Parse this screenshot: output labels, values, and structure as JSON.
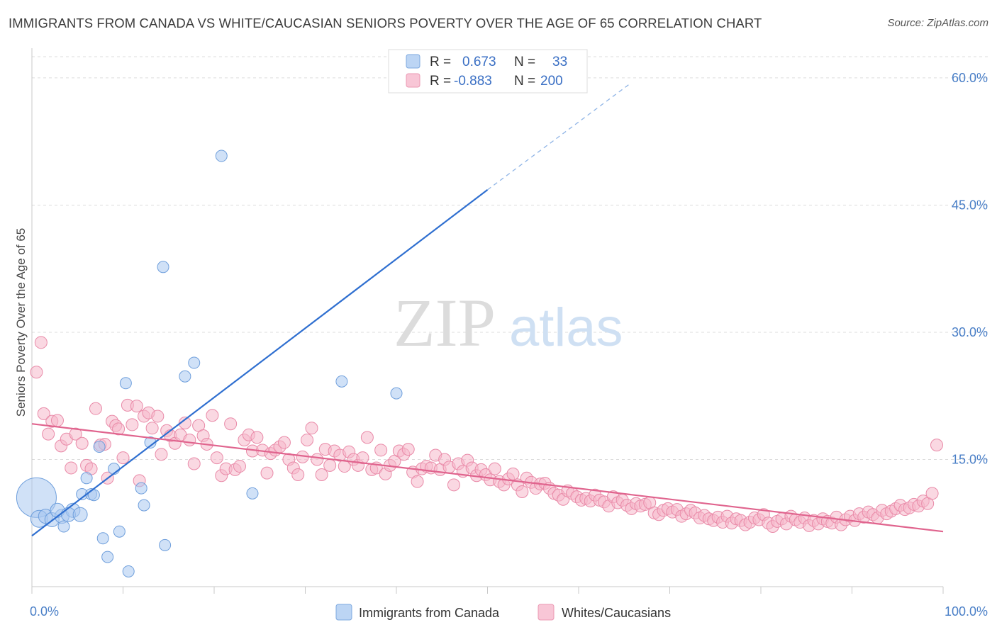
{
  "title": "IMMIGRANTS FROM CANADA VS WHITE/CAUCASIAN SENIORS POVERTY OVER THE AGE OF 65 CORRELATION CHART",
  "source": "Source: ZipAtlas.com",
  "watermark": {
    "zip": "ZIP",
    "atlas": "atlas"
  },
  "colors": {
    "blue": "#a9c8f0",
    "blue_stroke": "#6f9fdc",
    "blue_line": "#2f6fd0",
    "pink": "#f5b8cb",
    "pink_stroke": "#e98aa8",
    "pink_line": "#e0648e",
    "axis_text": "#4a7fc7"
  },
  "chart_data": {
    "type": "scatter",
    "xlabel": "",
    "ylabel": "Seniors Poverty Over the Age of 65",
    "xlim": [
      0,
      100
    ],
    "ylim": [
      0,
      62.5
    ],
    "x_ticks": [
      "0.0%",
      "100.0%"
    ],
    "y_ticks": [
      {
        "value": 15,
        "label": "15.0%"
      },
      {
        "value": 30,
        "label": "30.0%"
      },
      {
        "value": 45,
        "label": "45.0%"
      },
      {
        "value": 60,
        "label": "60.0%"
      }
    ],
    "grid": "horizontal-dashed",
    "legend": {
      "placement": "top-center",
      "rows": [
        {
          "r_label": "R =",
          "r_value": "0.673",
          "n_label": "N =",
          "n_value": "33"
        },
        {
          "r_label": "R =",
          "r_value": "-0.883",
          "n_label": "N =",
          "n_value": "200"
        }
      ]
    },
    "series": [
      {
        "name": "Immigrants from Canada",
        "color": "blue",
        "trend": {
          "x0": 0,
          "y0": 6.0,
          "x1": 50.0,
          "y1": 46.8,
          "dash_to_x": 65.5,
          "dash_to_y": 59.2
        },
        "points": [
          [
            0.5,
            10.5,
            28
          ],
          [
            0.8,
            8.0,
            12
          ],
          [
            1.5,
            8.3,
            10
          ],
          [
            2.2,
            7.9,
            10
          ],
          [
            3.3,
            8.3,
            10
          ],
          [
            2.8,
            9.0,
            10
          ],
          [
            3.5,
            7.1,
            8
          ],
          [
            4.5,
            9.0,
            10
          ],
          [
            4.0,
            8.5,
            10
          ],
          [
            5.3,
            8.5,
            10
          ],
          [
            5.5,
            10.9,
            8
          ],
          [
            6.0,
            12.8,
            8
          ],
          [
            6.5,
            10.9,
            8
          ],
          [
            6.8,
            10.8,
            8
          ],
          [
            7.4,
            16.5,
            8
          ],
          [
            7.8,
            5.7,
            8
          ],
          [
            8.3,
            3.5,
            8
          ],
          [
            9.0,
            13.9,
            8
          ],
          [
            9.6,
            6.5,
            8
          ],
          [
            10.3,
            24.0,
            8
          ],
          [
            10.6,
            1.8,
            8
          ],
          [
            12.0,
            11.6,
            8
          ],
          [
            12.3,
            9.6,
            8
          ],
          [
            13.0,
            17.0,
            8
          ],
          [
            14.4,
            37.7,
            8
          ],
          [
            14.6,
            4.9,
            8
          ],
          [
            16.8,
            24.8,
            8
          ],
          [
            17.8,
            26.4,
            8
          ],
          [
            20.8,
            50.8,
            8
          ],
          [
            24.2,
            11.0,
            8
          ],
          [
            34.0,
            24.2,
            8
          ],
          [
            40.0,
            22.8,
            8
          ],
          [
            41.0,
            60.2,
            8
          ]
        ]
      },
      {
        "name": "Whites/Caucasians",
        "color": "pink",
        "trend": {
          "x0": 0,
          "y0": 19.2,
          "x1": 100,
          "y1": 6.5
        },
        "points": [
          [
            0.5,
            25.3
          ],
          [
            1.0,
            28.8
          ],
          [
            1.3,
            20.4
          ],
          [
            1.8,
            18.0
          ],
          [
            2.2,
            19.5
          ],
          [
            2.8,
            19.6
          ],
          [
            3.2,
            16.6
          ],
          [
            3.8,
            17.4
          ],
          [
            4.3,
            14.0
          ],
          [
            4.8,
            18.0
          ],
          [
            5.5,
            16.9
          ],
          [
            6.0,
            14.3
          ],
          [
            6.5,
            13.9
          ],
          [
            7.0,
            21.0
          ],
          [
            7.5,
            16.7
          ],
          [
            8.0,
            16.8
          ],
          [
            8.3,
            12.8
          ],
          [
            8.8,
            19.5
          ],
          [
            9.2,
            19.0
          ],
          [
            9.5,
            18.6
          ],
          [
            10.0,
            15.2
          ],
          [
            10.5,
            21.4
          ],
          [
            11.0,
            19.1
          ],
          [
            11.5,
            21.3
          ],
          [
            11.8,
            12.5
          ],
          [
            12.3,
            20.1
          ],
          [
            12.8,
            20.5
          ],
          [
            13.2,
            18.7
          ],
          [
            13.8,
            20.1
          ],
          [
            14.2,
            15.6
          ],
          [
            14.8,
            18.4
          ],
          [
            15.2,
            17.8
          ],
          [
            15.7,
            16.9
          ],
          [
            16.3,
            17.9
          ],
          [
            16.8,
            19.3
          ],
          [
            17.3,
            17.3
          ],
          [
            17.8,
            14.5
          ],
          [
            18.3,
            19.0
          ],
          [
            18.8,
            17.8
          ],
          [
            19.2,
            16.8
          ],
          [
            19.8,
            20.2
          ],
          [
            20.3,
            15.2
          ],
          [
            20.8,
            13.1
          ],
          [
            21.3,
            13.9
          ],
          [
            21.8,
            19.2
          ],
          [
            22.3,
            13.8
          ],
          [
            22.8,
            14.2
          ],
          [
            23.3,
            17.3
          ],
          [
            23.8,
            17.9
          ],
          [
            24.2,
            16.0
          ],
          [
            24.7,
            17.6
          ],
          [
            25.3,
            16.1
          ],
          [
            25.8,
            13.4
          ],
          [
            26.2,
            15.7
          ],
          [
            26.7,
            16.1
          ],
          [
            27.2,
            16.5
          ],
          [
            27.7,
            17.0
          ],
          [
            28.2,
            15.0
          ],
          [
            28.7,
            14.0
          ],
          [
            29.2,
            13.2
          ],
          [
            29.7,
            15.3
          ],
          [
            30.2,
            17.3
          ],
          [
            30.7,
            18.7
          ],
          [
            31.3,
            15.0
          ],
          [
            31.8,
            13.2
          ],
          [
            32.2,
            16.2
          ],
          [
            32.7,
            14.3
          ],
          [
            33.2,
            16.0
          ],
          [
            33.8,
            15.5
          ],
          [
            34.3,
            14.2
          ],
          [
            34.8,
            15.9
          ],
          [
            35.3,
            15.0
          ],
          [
            35.8,
            14.3
          ],
          [
            36.3,
            15.2
          ],
          [
            36.8,
            17.6
          ],
          [
            37.3,
            13.8
          ],
          [
            37.8,
            14.0
          ],
          [
            38.3,
            16.1
          ],
          [
            38.8,
            13.3
          ],
          [
            39.3,
            14.3
          ],
          [
            39.8,
            14.8
          ],
          [
            40.3,
            16.0
          ],
          [
            40.8,
            15.6
          ],
          [
            41.3,
            16.2
          ],
          [
            41.8,
            13.5
          ],
          [
            42.3,
            12.4
          ],
          [
            42.8,
            13.9
          ],
          [
            43.3,
            14.2
          ],
          [
            43.8,
            14.0
          ],
          [
            44.3,
            15.5
          ],
          [
            44.8,
            13.8
          ],
          [
            45.3,
            15.0
          ],
          [
            45.8,
            14.1
          ],
          [
            46.3,
            12.0
          ],
          [
            46.8,
            14.5
          ],
          [
            47.3,
            13.6
          ],
          [
            47.8,
            14.9
          ],
          [
            48.3,
            14.0
          ],
          [
            48.8,
            13.1
          ],
          [
            49.3,
            13.8
          ],
          [
            49.8,
            13.2
          ],
          [
            50.3,
            12.6
          ],
          [
            50.8,
            13.9
          ],
          [
            51.3,
            12.4
          ],
          [
            51.8,
            12.0
          ],
          [
            52.3,
            12.7
          ],
          [
            52.8,
            13.3
          ],
          [
            53.3,
            12.0
          ],
          [
            53.8,
            11.2
          ],
          [
            54.3,
            12.8
          ],
          [
            54.8,
            12.3
          ],
          [
            55.3,
            11.6
          ],
          [
            55.8,
            12.1
          ],
          [
            56.3,
            12.2
          ],
          [
            56.8,
            11.6
          ],
          [
            57.3,
            11.0
          ],
          [
            57.8,
            10.8
          ],
          [
            58.3,
            10.3
          ],
          [
            58.8,
            11.3
          ],
          [
            59.3,
            11.0
          ],
          [
            59.8,
            10.6
          ],
          [
            60.3,
            10.2
          ],
          [
            60.8,
            10.4
          ],
          [
            61.3,
            10.1
          ],
          [
            61.8,
            10.8
          ],
          [
            62.3,
            10.2
          ],
          [
            62.8,
            10.0
          ],
          [
            63.3,
            9.5
          ],
          [
            63.8,
            10.6
          ],
          [
            64.3,
            9.9
          ],
          [
            64.8,
            10.2
          ],
          [
            65.3,
            9.6
          ],
          [
            65.8,
            9.2
          ],
          [
            66.3,
            9.8
          ],
          [
            66.8,
            9.5
          ],
          [
            67.3,
            9.7
          ],
          [
            67.8,
            9.9
          ],
          [
            68.3,
            8.7
          ],
          [
            68.8,
            8.5
          ],
          [
            69.3,
            9.0
          ],
          [
            69.8,
            9.2
          ],
          [
            70.3,
            8.8
          ],
          [
            70.8,
            9.1
          ],
          [
            71.3,
            8.3
          ],
          [
            71.8,
            8.6
          ],
          [
            72.3,
            9.0
          ],
          [
            72.8,
            8.7
          ],
          [
            73.3,
            8.1
          ],
          [
            73.8,
            8.4
          ],
          [
            74.3,
            8.0
          ],
          [
            74.8,
            7.8
          ],
          [
            75.3,
            8.2
          ],
          [
            75.8,
            7.6
          ],
          [
            76.3,
            8.3
          ],
          [
            76.8,
            7.5
          ],
          [
            77.3,
            8.0
          ],
          [
            77.8,
            7.8
          ],
          [
            78.3,
            7.3
          ],
          [
            78.8,
            7.6
          ],
          [
            79.3,
            8.1
          ],
          [
            79.8,
            7.9
          ],
          [
            80.3,
            8.5
          ],
          [
            80.8,
            7.5
          ],
          [
            81.3,
            7.1
          ],
          [
            81.8,
            7.7
          ],
          [
            82.3,
            8.0
          ],
          [
            82.8,
            7.4
          ],
          [
            83.3,
            8.3
          ],
          [
            83.8,
            7.9
          ],
          [
            84.3,
            7.6
          ],
          [
            84.8,
            8.1
          ],
          [
            85.3,
            7.2
          ],
          [
            85.8,
            7.8
          ],
          [
            86.3,
            7.4
          ],
          [
            86.8,
            8.0
          ],
          [
            87.3,
            7.7
          ],
          [
            87.8,
            7.5
          ],
          [
            88.3,
            8.2
          ],
          [
            88.8,
            7.3
          ],
          [
            89.3,
            7.9
          ],
          [
            89.8,
            8.3
          ],
          [
            90.3,
            7.8
          ],
          [
            90.8,
            8.6
          ],
          [
            91.3,
            8.2
          ],
          [
            91.8,
            8.8
          ],
          [
            92.3,
            8.5
          ],
          [
            92.8,
            8.1
          ],
          [
            93.3,
            9.0
          ],
          [
            93.8,
            8.6
          ],
          [
            94.3,
            8.9
          ],
          [
            94.8,
            9.2
          ],
          [
            95.3,
            9.6
          ],
          [
            95.8,
            9.1
          ],
          [
            96.3,
            9.3
          ],
          [
            96.8,
            9.7
          ],
          [
            97.3,
            9.5
          ],
          [
            97.8,
            10.1
          ],
          [
            98.3,
            9.8
          ],
          [
            98.8,
            11.0
          ],
          [
            99.3,
            16.7
          ]
        ]
      }
    ],
    "bottom_legend": [
      "Immigrants from Canada",
      "Whites/Caucasians"
    ]
  }
}
